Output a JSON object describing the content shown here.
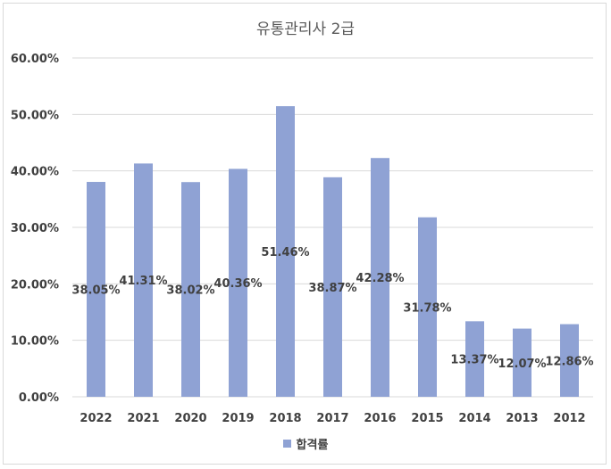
{
  "chart_data": {
    "type": "bar",
    "title": "유통관리사 2급",
    "categories": [
      "2022",
      "2021",
      "2020",
      "2019",
      "2018",
      "2017",
      "2016",
      "2015",
      "2014",
      "2013",
      "2012"
    ],
    "series": [
      {
        "name": "합격률",
        "values": [
          38.05,
          41.31,
          38.02,
          40.36,
          51.46,
          38.87,
          42.28,
          31.78,
          13.37,
          12.07,
          12.86
        ],
        "labels": [
          "38.05%",
          "41.31%",
          "38.02%",
          "40.36%",
          "51.46%",
          "38.87%",
          "42.28%",
          "31.78%",
          "13.37%",
          "12.07%",
          "12.86%"
        ]
      }
    ],
    "ylim": [
      0,
      60
    ],
    "y_ticks": [
      "0.00%",
      "10.00%",
      "20.00%",
      "30.00%",
      "40.00%",
      "50.00%",
      "60.00%"
    ],
    "grid": true,
    "legend_position": "bottom",
    "bar_color": "#8fa2d4"
  }
}
